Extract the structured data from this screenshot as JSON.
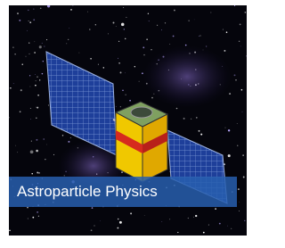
{
  "caption": "Astroparticle Physics"
}
